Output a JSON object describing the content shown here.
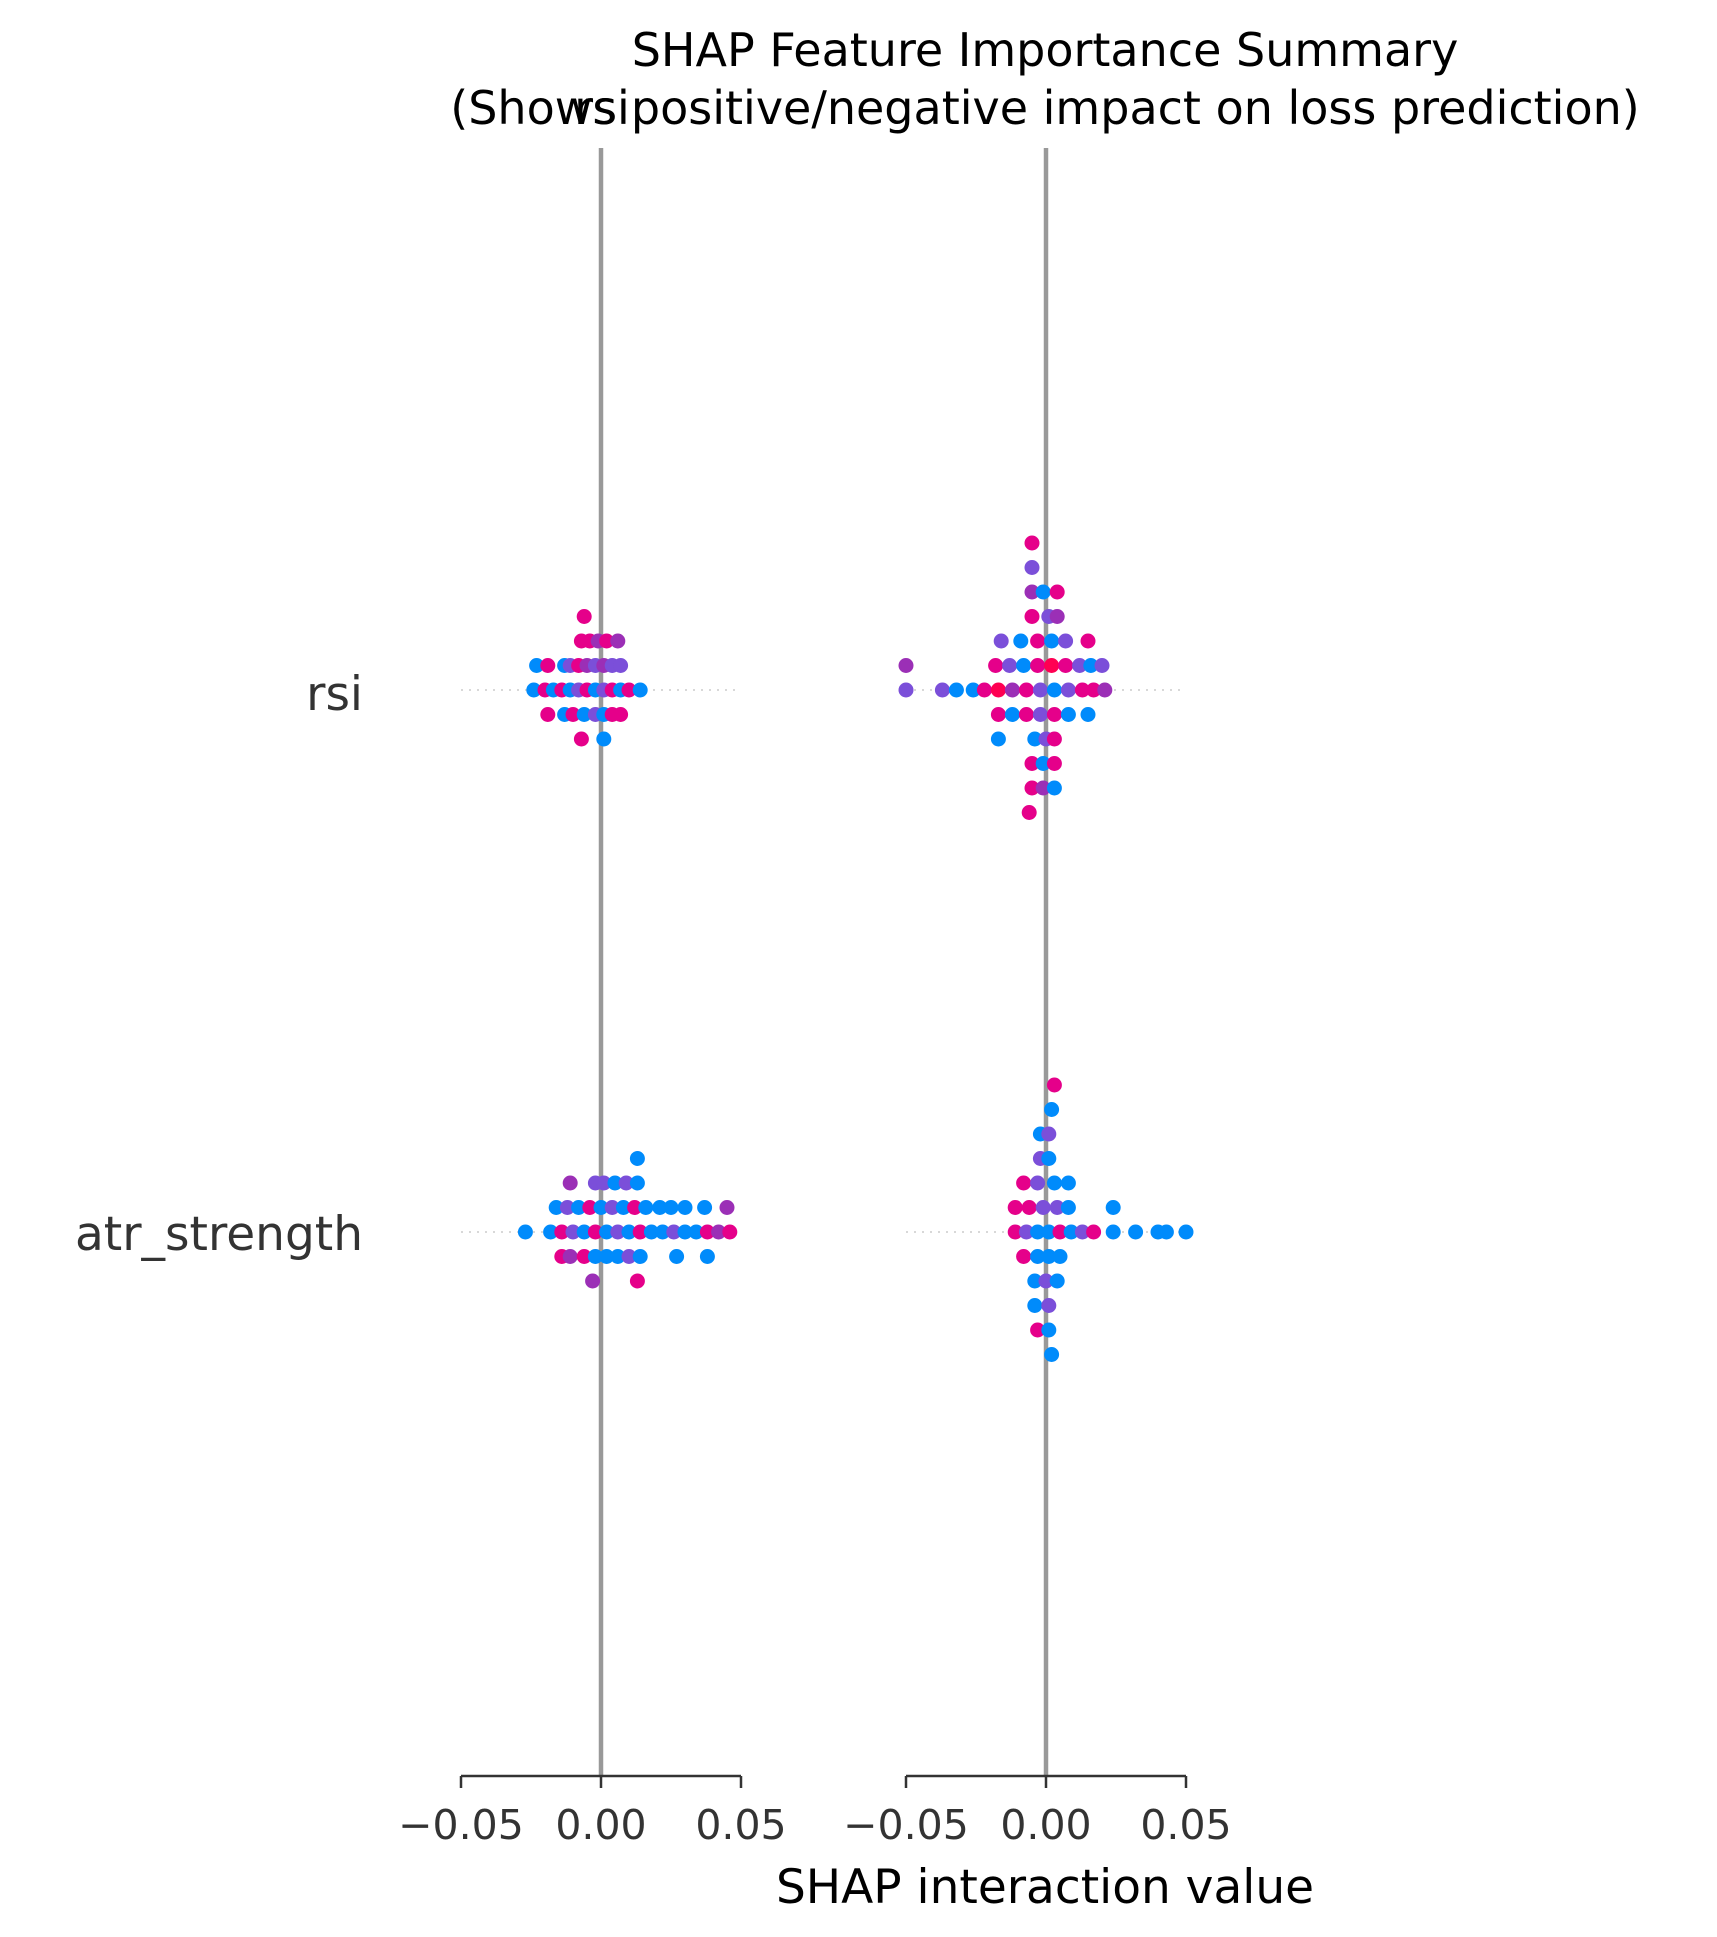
{
  "chart_data": {
    "type": "scatter",
    "title": "SHAP Feature Importance Summary\n(Shows positive/negative impact on loss prediction)",
    "column_titles": [
      "rsi",
      ""
    ],
    "features": [
      "rsi",
      "atr_strength"
    ],
    "xlabel": "SHAP interaction value",
    "xlim": [
      -0.05,
      0.05
    ],
    "x_ticks": [
      -0.05,
      0.0,
      0.05
    ],
    "x_tick_labels": [
      "−0.05",
      "0.00",
      "0.05"
    ],
    "zero_line": true,
    "grid": false,
    "panels": [
      {
        "rows": [
          {
            "feature": "rsi",
            "points": [
              [
                -0.006,
                3,
                "pink"
              ],
              [
                -0.007,
                2,
                "pink"
              ],
              [
                -0.004,
                2,
                "pink"
              ],
              [
                -0.001,
                2,
                "purple"
              ],
              [
                0.002,
                2,
                "pink"
              ],
              [
                0.006,
                2,
                "purple"
              ],
              [
                -0.023,
                1,
                "blue"
              ],
              [
                -0.019,
                1,
                "pink"
              ],
              [
                -0.013,
                1,
                "blue"
              ],
              [
                -0.011,
                1,
                "violet"
              ],
              [
                -0.008,
                1,
                "pink"
              ],
              [
                -0.005,
                1,
                "purple"
              ],
              [
                -0.002,
                1,
                "violet"
              ],
              [
                0.001,
                1,
                "purple"
              ],
              [
                0.004,
                1,
                "violet"
              ],
              [
                0.007,
                1,
                "violet"
              ],
              [
                -0.024,
                0,
                "blue"
              ],
              [
                -0.02,
                0,
                "pink"
              ],
              [
                -0.017,
                0,
                "blue"
              ],
              [
                -0.014,
                0,
                "pink"
              ],
              [
                -0.011,
                0,
                "blue"
              ],
              [
                -0.008,
                0,
                "violet"
              ],
              [
                -0.005,
                0,
                "pink"
              ],
              [
                -0.002,
                0,
                "blue"
              ],
              [
                0.001,
                0,
                "violet"
              ],
              [
                0.004,
                0,
                "pink"
              ],
              [
                0.007,
                0,
                "blue"
              ],
              [
                0.01,
                0,
                "pink"
              ],
              [
                0.014,
                0,
                "blue"
              ],
              [
                -0.019,
                -1,
                "pink"
              ],
              [
                -0.013,
                -1,
                "blue"
              ],
              [
                -0.01,
                -1,
                "pink"
              ],
              [
                -0.006,
                -1,
                "blue"
              ],
              [
                -0.002,
                -1,
                "violet"
              ],
              [
                0.001,
                -1,
                "blue"
              ],
              [
                0.004,
                -1,
                "pink"
              ],
              [
                0.007,
                -1,
                "pink"
              ],
              [
                -0.007,
                -2,
                "pink"
              ],
              [
                0.001,
                -2,
                "blue"
              ]
            ]
          },
          {
            "feature": "atr_strength",
            "points": [
              [
                0.013,
                3,
                "blue"
              ],
              [
                -0.011,
                2,
                "purple"
              ],
              [
                -0.002,
                2,
                "violet"
              ],
              [
                0.001,
                2,
                "violet"
              ],
              [
                0.005,
                2,
                "blue"
              ],
              [
                0.009,
                2,
                "violet"
              ],
              [
                0.013,
                2,
                "blue"
              ],
              [
                -0.016,
                1,
                "blue"
              ],
              [
                -0.012,
                1,
                "violet"
              ],
              [
                -0.008,
                1,
                "blue"
              ],
              [
                -0.004,
                1,
                "pink"
              ],
              [
                0.0,
                1,
                "blue"
              ],
              [
                0.004,
                1,
                "violet"
              ],
              [
                0.008,
                1,
                "blue"
              ],
              [
                0.012,
                1,
                "pink"
              ],
              [
                0.016,
                1,
                "blue"
              ],
              [
                0.021,
                1,
                "blue"
              ],
              [
                0.025,
                1,
                "blue"
              ],
              [
                0.03,
                1,
                "blue"
              ],
              [
                0.037,
                1,
                "blue"
              ],
              [
                0.045,
                1,
                "purple"
              ],
              [
                -0.027,
                0,
                "blue"
              ],
              [
                -0.018,
                0,
                "blue"
              ],
              [
                -0.014,
                0,
                "pink"
              ],
              [
                -0.01,
                0,
                "violet"
              ],
              [
                -0.006,
                0,
                "blue"
              ],
              [
                -0.002,
                0,
                "pink"
              ],
              [
                0.002,
                0,
                "blue"
              ],
              [
                0.006,
                0,
                "violet"
              ],
              [
                0.01,
                0,
                "blue"
              ],
              [
                0.014,
                0,
                "pink"
              ],
              [
                0.018,
                0,
                "blue"
              ],
              [
                0.022,
                0,
                "blue"
              ],
              [
                0.026,
                0,
                "violet"
              ],
              [
                0.03,
                0,
                "blue"
              ],
              [
                0.034,
                0,
                "blue"
              ],
              [
                0.038,
                0,
                "pink"
              ],
              [
                0.042,
                0,
                "purple"
              ],
              [
                0.046,
                0,
                "pink"
              ],
              [
                -0.014,
                -1,
                "pink"
              ],
              [
                -0.011,
                -1,
                "purple"
              ],
              [
                -0.006,
                -1,
                "pink"
              ],
              [
                -0.002,
                -1,
                "blue"
              ],
              [
                0.002,
                -1,
                "blue"
              ],
              [
                0.006,
                -1,
                "blue"
              ],
              [
                0.01,
                -1,
                "violet"
              ],
              [
                0.014,
                -1,
                "blue"
              ],
              [
                0.027,
                -1,
                "blue"
              ],
              [
                0.038,
                -1,
                "blue"
              ],
              [
                -0.003,
                -2,
                "purple"
              ],
              [
                0.013,
                -2,
                "pink"
              ]
            ]
          }
        ]
      },
      {
        "rows": [
          {
            "feature": "rsi",
            "points": [
              [
                -0.005,
                6,
                "pink"
              ],
              [
                -0.005,
                5,
                "violet"
              ],
              [
                -0.005,
                4,
                "purple"
              ],
              [
                -0.001,
                4,
                "blue"
              ],
              [
                0.004,
                4,
                "pink"
              ],
              [
                -0.005,
                3,
                "pink"
              ],
              [
                0.001,
                3,
                "violet"
              ],
              [
                0.004,
                3,
                "purple"
              ],
              [
                -0.016,
                2,
                "violet"
              ],
              [
                -0.009,
                2,
                "blue"
              ],
              [
                -0.003,
                2,
                "pink"
              ],
              [
                0.002,
                2,
                "blue"
              ],
              [
                0.007,
                2,
                "violet"
              ],
              [
                0.015,
                2,
                "pink"
              ],
              [
                -0.05,
                1,
                "purple"
              ],
              [
                -0.018,
                1,
                "pink"
              ],
              [
                -0.013,
                1,
                "violet"
              ],
              [
                -0.008,
                1,
                "blue"
              ],
              [
                -0.003,
                1,
                "pink"
              ],
              [
                0.002,
                1,
                "red"
              ],
              [
                0.007,
                1,
                "pink"
              ],
              [
                0.012,
                1,
                "violet"
              ],
              [
                0.016,
                1,
                "blue"
              ],
              [
                0.02,
                1,
                "violet"
              ],
              [
                -0.05,
                0,
                "violet"
              ],
              [
                -0.037,
                0,
                "violet"
              ],
              [
                -0.032,
                0,
                "blue"
              ],
              [
                -0.026,
                0,
                "blue"
              ],
              [
                -0.022,
                0,
                "pink"
              ],
              [
                -0.017,
                0,
                "red"
              ],
              [
                -0.012,
                0,
                "purple"
              ],
              [
                -0.007,
                0,
                "pink"
              ],
              [
                -0.002,
                0,
                "violet"
              ],
              [
                0.003,
                0,
                "blue"
              ],
              [
                0.008,
                0,
                "violet"
              ],
              [
                0.013,
                0,
                "pink"
              ],
              [
                0.017,
                0,
                "pink"
              ],
              [
                0.021,
                0,
                "purple"
              ],
              [
                -0.017,
                -1,
                "pink"
              ],
              [
                -0.012,
                -1,
                "blue"
              ],
              [
                -0.007,
                -1,
                "pink"
              ],
              [
                -0.002,
                -1,
                "violet"
              ],
              [
                0.003,
                -1,
                "pink"
              ],
              [
                0.008,
                -1,
                "blue"
              ],
              [
                0.015,
                -1,
                "blue"
              ],
              [
                -0.017,
                -2,
                "blue"
              ],
              [
                -0.004,
                -2,
                "blue"
              ],
              [
                0.0,
                -2,
                "violet"
              ],
              [
                0.003,
                -2,
                "pink"
              ],
              [
                -0.005,
                -3,
                "pink"
              ],
              [
                -0.001,
                -3,
                "blue"
              ],
              [
                0.003,
                -3,
                "pink"
              ],
              [
                -0.005,
                -4,
                "pink"
              ],
              [
                -0.001,
                -4,
                "purple"
              ],
              [
                0.003,
                -4,
                "blue"
              ],
              [
                -0.006,
                -5,
                "pink"
              ]
            ]
          },
          {
            "feature": "atr_strength",
            "points": [
              [
                0.003,
                6,
                "pink"
              ],
              [
                0.002,
                5,
                "blue"
              ],
              [
                -0.002,
                4,
                "blue"
              ],
              [
                0.001,
                4,
                "violet"
              ],
              [
                -0.002,
                3,
                "violet"
              ],
              [
                0.001,
                3,
                "blue"
              ],
              [
                -0.008,
                2,
                "pink"
              ],
              [
                -0.003,
                2,
                "violet"
              ],
              [
                0.003,
                2,
                "blue"
              ],
              [
                0.008,
                2,
                "blue"
              ],
              [
                -0.011,
                1,
                "pink"
              ],
              [
                -0.006,
                1,
                "pink"
              ],
              [
                -0.001,
                1,
                "violet"
              ],
              [
                0.004,
                1,
                "violet"
              ],
              [
                0.008,
                1,
                "blue"
              ],
              [
                0.024,
                1,
                "blue"
              ],
              [
                -0.011,
                0,
                "pink"
              ],
              [
                -0.007,
                0,
                "violet"
              ],
              [
                -0.003,
                0,
                "blue"
              ],
              [
                0.001,
                0,
                "blue"
              ],
              [
                0.005,
                0,
                "pink"
              ],
              [
                0.009,
                0,
                "blue"
              ],
              [
                0.013,
                0,
                "violet"
              ],
              [
                0.017,
                0,
                "pink"
              ],
              [
                0.024,
                0,
                "blue"
              ],
              [
                0.032,
                0,
                "blue"
              ],
              [
                0.04,
                0,
                "blue"
              ],
              [
                0.043,
                0,
                "blue"
              ],
              [
                0.05,
                0,
                "blue"
              ],
              [
                -0.008,
                -1,
                "pink"
              ],
              [
                -0.003,
                -1,
                "blue"
              ],
              [
                0.001,
                -1,
                "blue"
              ],
              [
                0.005,
                -1,
                "blue"
              ],
              [
                -0.004,
                -2,
                "blue"
              ],
              [
                0.0,
                -2,
                "violet"
              ],
              [
                0.004,
                -2,
                "blue"
              ],
              [
                -0.004,
                -3,
                "blue"
              ],
              [
                0.001,
                -3,
                "violet"
              ],
              [
                -0.003,
                -4,
                "pink"
              ],
              [
                0.001,
                -4,
                "blue"
              ],
              [
                0.002,
                -5,
                "blue"
              ]
            ]
          }
        ]
      }
    ],
    "colors": {
      "blue": "#008bfb",
      "violet": "#7b4fd9",
      "purple": "#9b2fb6",
      "pink": "#e5008a",
      "red": "#ff0052",
      "zero_line": "#999999",
      "axis": "#333333"
    }
  }
}
